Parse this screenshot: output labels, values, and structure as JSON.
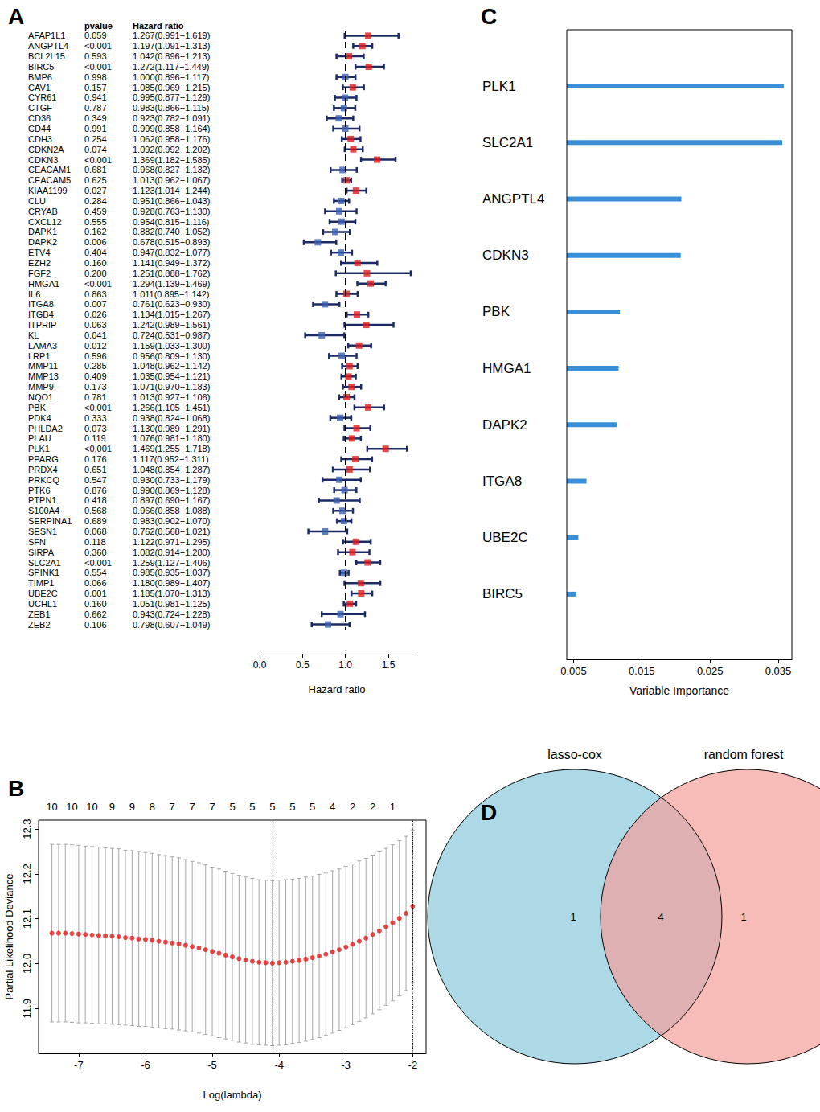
{
  "chart_data": [
    {
      "type": "forest",
      "panel_label": "A",
      "column_titles": [
        "pvalue",
        "Hazard ratio"
      ],
      "categories": [
        "AFAP1L1",
        "ANGPTL4",
        "BCL2L15",
        "BIRC5",
        "BMP6",
        "CAV1",
        "CYR61",
        "CTGF",
        "CD36",
        "CD44",
        "CDH3",
        "CDKN2A",
        "CDKN3",
        "CEACAM1",
        "CEACAM5",
        "KIAA1199",
        "CLU",
        "CRYAB",
        "CXCL12",
        "DAPK1",
        "DAPK2",
        "ETV4",
        "EZH2",
        "FGF2",
        "HMGA1",
        "IL6",
        "ITGA8",
        "ITGB4",
        "ITPRIP",
        "KL",
        "LAMA3",
        "LRP1",
        "MMP11",
        "MMP13",
        "MMP9",
        "NQO1",
        "PBK",
        "PDK4",
        "PHLDA2",
        "PLAU",
        "PLK1",
        "PPARG",
        "PRDX4",
        "PRKCQ",
        "PTK6",
        "PTPN1",
        "S100A4",
        "SERPINA1",
        "SESN1",
        "SFN",
        "SIRPA",
        "SLC2A1",
        "SPINK1",
        "TIMP1",
        "UBE2C",
        "UCHL1",
        "ZEB1",
        "ZEB2"
      ],
      "pvalues": [
        "0.059",
        "<0.001",
        "0.593",
        "<0.001",
        "0.998",
        "0.157",
        "0.941",
        "0.787",
        "0.349",
        "0.991",
        "0.254",
        "0.074",
        "<0.001",
        "0.681",
        "0.625",
        "0.027",
        "0.284",
        "0.459",
        "0.555",
        "0.162",
        "0.006",
        "0.404",
        "0.160",
        "0.200",
        "<0.001",
        "0.863",
        "0.007",
        "0.026",
        "0.063",
        "0.041",
        "0.012",
        "0.596",
        "0.285",
        "0.409",
        "0.173",
        "0.781",
        "<0.001",
        "0.333",
        "0.073",
        "0.119",
        "<0.001",
        "0.176",
        "0.651",
        "0.547",
        "0.876",
        "0.418",
        "0.568",
        "0.689",
        "0.068",
        "0.118",
        "0.360",
        "<0.001",
        "0.554",
        "0.066",
        "0.001",
        "0.160",
        "0.662",
        "0.106"
      ],
      "hr_labels": [
        "1.267(0.991−1.619)",
        "1.197(1.091−1.313)",
        "1.042(0.896−1.213)",
        "1.272(1.117−1.449)",
        "1.000(0.896−1.117)",
        "1.085(0.969−1.215)",
        "0.995(0.877−1.129)",
        "0.983(0.866−1.115)",
        "0.923(0.782−1.091)",
        "0.999(0.858−1.164)",
        "1.062(0.958−1.176)",
        "1.092(0.992−1.202)",
        "1.369(1.182−1.585)",
        "0.968(0.827−1.132)",
        "1.013(0.962−1.067)",
        "1.123(1.014−1.244)",
        "0.951(0.866−1.043)",
        "0.928(0.763−1.130)",
        "0.954(0.815−1.116)",
        "0.882(0.740−1.052)",
        "0.678(0.515−0.893)",
        "0.947(0.832−1.077)",
        "1.141(0.949−1.372)",
        "1.251(0.888−1.762)",
        "1.294(1.139−1.469)",
        "1.011(0.895−1.142)",
        "0.761(0.623−0.930)",
        "1.134(1.015−1.267)",
        "1.242(0.989−1.561)",
        "0.724(0.531−0.987)",
        "1.159(1.033−1.300)",
        "0.956(0.809−1.130)",
        "1.048(0.962−1.142)",
        "1.035(0.954−1.121)",
        "1.071(0.970−1.183)",
        "1.013(0.927−1.106)",
        "1.266(1.105−1.451)",
        "0.938(0.824−1.068)",
        "1.130(0.989−1.291)",
        "1.076(0.981−1.180)",
        "1.469(1.255−1.718)",
        "1.117(0.952−1.311)",
        "1.048(0.854−1.287)",
        "0.930(0.733−1.179)",
        "0.990(0.869−1.128)",
        "0.897(0.690−1.167)",
        "0.966(0.858−1.088)",
        "0.983(0.902−1.070)",
        "0.762(0.568−1.021)",
        "1.122(0.971−1.295)",
        "1.082(0.914−1.280)",
        "1.259(1.127−1.406)",
        "0.985(0.935−1.037)",
        "1.180(0.989−1.407)",
        "1.185(1.070−1.313)",
        "1.051(0.981−1.125)",
        "0.943(0.724−1.228)",
        "0.798(0.607−1.049)"
      ],
      "values": [
        1.267,
        1.197,
        1.042,
        1.272,
        1.0,
        1.085,
        0.995,
        0.983,
        0.923,
        0.999,
        1.062,
        1.092,
        1.369,
        0.968,
        1.013,
        1.123,
        0.951,
        0.928,
        0.954,
        0.882,
        0.678,
        0.947,
        1.141,
        1.251,
        1.294,
        1.011,
        0.761,
        1.134,
        1.242,
        0.724,
        1.159,
        0.956,
        1.048,
        1.035,
        1.071,
        1.013,
        1.266,
        0.938,
        1.13,
        1.076,
        1.469,
        1.117,
        1.048,
        0.93,
        0.99,
        0.897,
        0.966,
        0.983,
        0.762,
        1.122,
        1.082,
        1.259,
        0.985,
        1.18,
        1.185,
        1.051,
        0.943,
        0.798
      ],
      "lower": [
        0.991,
        1.091,
        0.896,
        1.117,
        0.896,
        0.969,
        0.877,
        0.866,
        0.782,
        0.858,
        0.958,
        0.992,
        1.182,
        0.827,
        0.962,
        1.014,
        0.866,
        0.763,
        0.815,
        0.74,
        0.515,
        0.832,
        0.949,
        0.888,
        1.139,
        0.895,
        0.623,
        1.015,
        0.989,
        0.531,
        1.033,
        0.809,
        0.962,
        0.954,
        0.97,
        0.927,
        1.105,
        0.824,
        0.989,
        0.981,
        1.255,
        0.952,
        0.854,
        0.733,
        0.869,
        0.69,
        0.858,
        0.902,
        0.568,
        0.971,
        0.914,
        1.127,
        0.935,
        0.989,
        1.07,
        0.981,
        0.724,
        0.607
      ],
      "upper": [
        1.619,
        1.313,
        1.213,
        1.449,
        1.117,
        1.215,
        1.129,
        1.115,
        1.091,
        1.164,
        1.176,
        1.202,
        1.585,
        1.132,
        1.067,
        1.244,
        1.043,
        1.13,
        1.116,
        1.052,
        0.893,
        1.077,
        1.372,
        1.762,
        1.469,
        1.142,
        0.93,
        1.267,
        1.561,
        0.987,
        1.3,
        1.13,
        1.142,
        1.121,
        1.183,
        1.106,
        1.451,
        1.068,
        1.291,
        1.18,
        1.718,
        1.311,
        1.287,
        1.179,
        1.128,
        1.167,
        1.088,
        1.07,
        1.021,
        1.295,
        1.28,
        1.406,
        1.037,
        1.407,
        1.313,
        1.125,
        1.228,
        1.049
      ],
      "colors": [
        "#e41a1c",
        "#e41a1c",
        "#e41a1c",
        "#e41a1c",
        "#3a5fb0",
        "#e41a1c",
        "#3a5fb0",
        "#3a5fb0",
        "#3a5fb0",
        "#3a5fb0",
        "#e41a1c",
        "#e41a1c",
        "#e41a1c",
        "#3a5fb0",
        "#e41a1c",
        "#e41a1c",
        "#3a5fb0",
        "#3a5fb0",
        "#3a5fb0",
        "#3a5fb0",
        "#3a5fb0",
        "#3a5fb0",
        "#e41a1c",
        "#e41a1c",
        "#e41a1c",
        "#e41a1c",
        "#3a5fb0",
        "#e41a1c",
        "#e41a1c",
        "#3a5fb0",
        "#e41a1c",
        "#3a5fb0",
        "#e41a1c",
        "#e41a1c",
        "#e41a1c",
        "#e41a1c",
        "#e41a1c",
        "#3a5fb0",
        "#e41a1c",
        "#e41a1c",
        "#e41a1c",
        "#e41a1c",
        "#e41a1c",
        "#3a5fb0",
        "#3a5fb0",
        "#3a5fb0",
        "#3a5fb0",
        "#3a5fb0",
        "#3a5fb0",
        "#e41a1c",
        "#e41a1c",
        "#e41a1c",
        "#3a5fb0",
        "#e41a1c",
        "#e41a1c",
        "#e41a1c",
        "#3a5fb0",
        "#3a5fb0"
      ],
      "marker": "rect",
      "xlabel": "Hazard ratio",
      "xlim": [
        0,
        1.8
      ],
      "xticks": [
        {
          "value": 0,
          "label": "0.0"
        },
        0.5,
        {
          "value": 1,
          "label": "1.0"
        },
        1.5
      ],
      "ref_line": 1
    },
    {
      "type": "scatter",
      "panel_label": "B",
      "x": [
        -7.4,
        -7.3,
        -7.2,
        -7.1,
        -7.0,
        -6.9,
        -6.8,
        -6.7,
        -6.6,
        -6.5,
        -6.4,
        -6.3,
        -6.2,
        -6.1,
        -6.0,
        -5.9,
        -5.8,
        -5.7,
        -5.6,
        -5.5,
        -5.4,
        -5.3,
        -5.2,
        -5.1,
        -5.0,
        -4.9,
        -4.8,
        -4.7,
        -4.6,
        -4.5,
        -4.4,
        -4.3,
        -4.2,
        -4.1,
        -4.0,
        -3.9,
        -3.8,
        -3.7,
        -3.6,
        -3.5,
        -3.4,
        -3.3,
        -3.2,
        -3.1,
        -3.0,
        -2.9,
        -2.8,
        -2.7,
        -2.6,
        -2.5,
        -2.4,
        -2.3,
        -2.2,
        -2.1,
        -2.0
      ],
      "values": [
        12.068,
        12.068,
        12.068,
        12.067,
        12.066,
        12.065,
        12.064,
        12.063,
        12.062,
        12.061,
        12.06,
        12.058,
        12.057,
        12.055,
        12.054,
        12.052,
        12.05,
        12.048,
        12.046,
        12.044,
        12.041,
        12.038,
        12.035,
        12.031,
        12.027,
        12.023,
        12.019,
        12.015,
        12.011,
        12.008,
        12.005,
        12.003,
        12.002,
        12.001,
        12.002,
        12.003,
        12.005,
        12.007,
        12.01,
        12.013,
        12.017,
        12.021,
        12.026,
        12.031,
        12.037,
        12.043,
        12.05,
        12.057,
        12.065,
        12.073,
        12.082,
        12.091,
        12.101,
        12.112,
        12.128
      ],
      "error": [
        0.198,
        0.198,
        0.198,
        0.198,
        0.198,
        0.197,
        0.197,
        0.197,
        0.196,
        0.196,
        0.196,
        0.195,
        0.195,
        0.195,
        0.194,
        0.194,
        0.193,
        0.193,
        0.192,
        0.192,
        0.191,
        0.19,
        0.19,
        0.189,
        0.188,
        0.188,
        0.187,
        0.186,
        0.186,
        0.185,
        0.185,
        0.184,
        0.184,
        0.184,
        0.184,
        0.184,
        0.183,
        0.183,
        0.183,
        0.182,
        0.182,
        0.181,
        0.181,
        0.18,
        0.18,
        0.179,
        0.179,
        0.178,
        0.177,
        0.176,
        0.175,
        0.174,
        0.173,
        0.172,
        0.17
      ],
      "color": "#e41a1c",
      "marker": "circle",
      "xlabel": "Log(lambda)",
      "ylabel": "Partial Likelihood Deviance",
      "xlim": [
        -7.6,
        -1.8
      ],
      "xticks": [
        -7,
        -6,
        -5,
        -4,
        -3,
        -2
      ],
      "ylim": [
        11.8,
        12.32
      ],
      "yticks": [
        11.9,
        {
          "value": 12,
          "label": "12.0"
        },
        12.1,
        12.2,
        12.3
      ],
      "x2ticks": [
        {
          "value": -7.4,
          "label": "10"
        },
        {
          "value": -7.1,
          "label": "10"
        },
        {
          "value": -6.8,
          "label": "10"
        },
        {
          "value": -6.5,
          "label": "9"
        },
        {
          "value": -6.2,
          "label": "9"
        },
        {
          "value": -5.9,
          "label": "8"
        },
        {
          "value": -5.6,
          "label": "7"
        },
        {
          "value": -5.3,
          "label": "7"
        },
        {
          "value": -5.0,
          "label": "7"
        },
        {
          "value": -4.7,
          "label": "5"
        },
        {
          "value": -4.4,
          "label": "5"
        },
        {
          "value": -4.1,
          "label": "5"
        },
        {
          "value": -3.8,
          "label": "5"
        },
        {
          "value": -3.5,
          "label": "5"
        },
        {
          "value": -3.2,
          "label": "4"
        },
        {
          "value": -2.9,
          "label": "2"
        },
        {
          "value": -2.6,
          "label": "2"
        },
        {
          "value": -2.3,
          "label": "1"
        }
      ],
      "vlines": [
        -4.1,
        -2.0
      ]
    },
    {
      "type": "bar",
      "panel_label": "C",
      "orientation": "horizontal",
      "categories": [
        "PLK1",
        "SLC2A1",
        "ANGPTL4",
        "CDKN3",
        "PBK",
        "HMGA1",
        "DAPK2",
        "ITGA8",
        "UBE2C",
        "BIRC5"
      ],
      "values": [
        0.0358,
        0.0356,
        0.0208,
        0.0207,
        0.0118,
        0.0116,
        0.0113,
        0.0069,
        0.0057,
        0.0054
      ],
      "color": "#3a8fd6",
      "xlabel": "Variable Importance",
      "xlim": [
        0.004,
        0.037
      ],
      "xticks": [
        0.005,
        0.015,
        0.025,
        0.035
      ]
    },
    {
      "type": "venn",
      "panel_label": "D",
      "sets": [
        {
          "name": "lasso-cox",
          "color": "#add8e6"
        },
        {
          "name": "random forest",
          "color": "#f4a09a"
        }
      ],
      "values": [
        1,
        4,
        1
      ]
    }
  ]
}
